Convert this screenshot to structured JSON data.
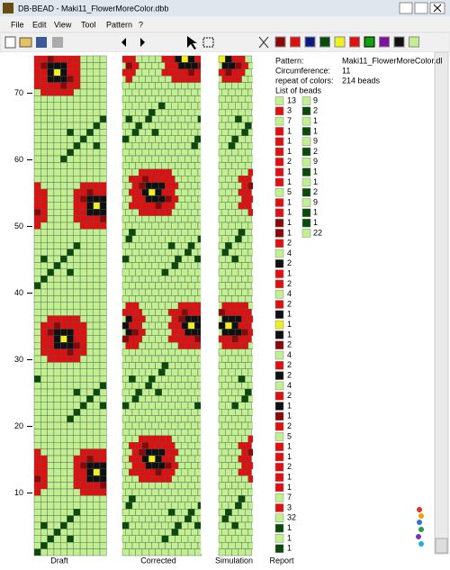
{
  "window": {
    "title": "DB-BEAD - Maki11_FlowerMoreColor.dbb"
  },
  "menu": [
    "File",
    "Edit",
    "View",
    "Tool",
    "Pattern",
    "?"
  ],
  "ruler": [
    70,
    60,
    50,
    40,
    30,
    20,
    10
  ],
  "panes": [
    "Draft",
    "Corrected",
    "Simulation",
    "Report"
  ],
  "report": {
    "pattern_label": "Pattern:",
    "pattern": "Maki11_FlowerMoreColor.dl",
    "circumference_label": "Circumference:",
    "circumference": "11",
    "repeat_label": "repeat of colors:",
    "repeat": "214 beads",
    "list_label": "List of beads",
    "beads": [
      {
        "color": "#c0f090",
        "count": "13"
      },
      {
        "color": "#e01010",
        "count": "3"
      },
      {
        "color": "#c0f090",
        "count": "7"
      },
      {
        "color": "#e01010",
        "count": "1"
      },
      {
        "color": "#e01010",
        "count": "1"
      },
      {
        "color": "#e01010",
        "count": "1"
      },
      {
        "color": "#e01010",
        "count": "2"
      },
      {
        "color": "#e01010",
        "count": "1"
      },
      {
        "color": "#e01010",
        "count": "1"
      },
      {
        "color": "#c0f090",
        "count": "5"
      },
      {
        "color": "#e01010",
        "count": "1"
      },
      {
        "color": "#e01010",
        "count": "1"
      },
      {
        "color": "#8a0808",
        "count": "1"
      },
      {
        "color": "#8a0808",
        "count": "1"
      },
      {
        "color": "#e01010",
        "count": "2"
      },
      {
        "color": "#c0f090",
        "count": "4"
      },
      {
        "color": "#101010",
        "count": "2"
      },
      {
        "color": "#e01010",
        "count": "1"
      },
      {
        "color": "#e01010",
        "count": "2"
      },
      {
        "color": "#c0f090",
        "count": "4"
      },
      {
        "color": "#e01010",
        "count": "2"
      },
      {
        "color": "#101010",
        "count": "1"
      },
      {
        "color": "#f0f020",
        "count": "1"
      },
      {
        "color": "#101010",
        "count": "1"
      },
      {
        "color": "#8a0808",
        "count": "2"
      },
      {
        "color": "#c0f090",
        "count": "4"
      },
      {
        "color": "#e01010",
        "count": "2"
      },
      {
        "color": "#101010",
        "count": "2"
      },
      {
        "color": "#c0f090",
        "count": "4"
      },
      {
        "color": "#e01010",
        "count": "2"
      },
      {
        "color": "#101010",
        "count": "1"
      },
      {
        "color": "#8a0808",
        "count": "1"
      },
      {
        "color": "#e01010",
        "count": "2"
      },
      {
        "color": "#c0f090",
        "count": "5"
      },
      {
        "color": "#e01010",
        "count": "1"
      },
      {
        "color": "#e01010",
        "count": "1"
      },
      {
        "color": "#e01010",
        "count": "2"
      },
      {
        "color": "#e01010",
        "count": "1"
      },
      {
        "color": "#e01010",
        "count": "1"
      },
      {
        "color": "#c0f090",
        "count": "7"
      },
      {
        "color": "#e01010",
        "count": "3"
      },
      {
        "color": "#c0f090",
        "count": "32"
      },
      {
        "color": "#0a4a0a",
        "count": "1"
      },
      {
        "color": "#c0f090",
        "count": "1"
      },
      {
        "color": "#0a4a0a",
        "count": "1"
      }
    ],
    "beads2": [
      {
        "color": "#c0f090",
        "count": "9"
      },
      {
        "color": "#0a4a0a",
        "count": "2"
      },
      {
        "color": "#c0f090",
        "count": "1"
      },
      {
        "color": "#0a4a0a",
        "count": "1"
      },
      {
        "color": "#c0f090",
        "count": "9"
      },
      {
        "color": "#0a4a0a",
        "count": "2"
      },
      {
        "color": "#c0f090",
        "count": "9"
      },
      {
        "color": "#0a4a0a",
        "count": "1"
      },
      {
        "color": "#c0f090",
        "count": "1"
      },
      {
        "color": "#0a4a0a",
        "count": "2"
      },
      {
        "color": "#c0f090",
        "count": "9"
      },
      {
        "color": "#0a4a0a",
        "count": "1"
      },
      {
        "color": "#0a4a0a",
        "count": "1"
      },
      {
        "color": "#c0f090",
        "count": "22"
      }
    ]
  }
}
